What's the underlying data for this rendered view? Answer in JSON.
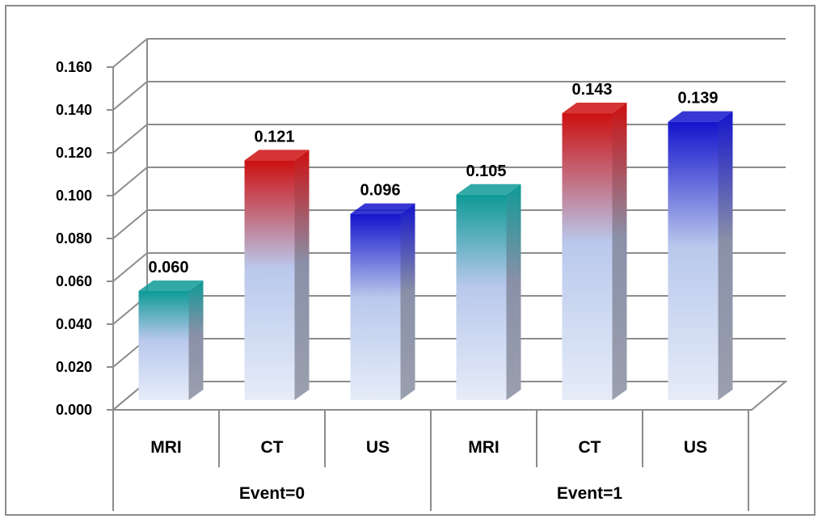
{
  "chart_data": {
    "type": "bar",
    "style": "3d-column",
    "groups": [
      "Event=0",
      "Event=1"
    ],
    "categories": [
      "MRI",
      "CT",
      "US"
    ],
    "values": [
      [
        0.06,
        0.121,
        0.096
      ],
      [
        0.105,
        0.143,
        0.139
      ]
    ],
    "data_labels": [
      "0.060",
      "0.121",
      "0.096",
      "0.105",
      "0.143",
      "0.139"
    ],
    "ylim": [
      0,
      0.16
    ],
    "yticks": [
      "0.000",
      "0.020",
      "0.040",
      "0.060",
      "0.080",
      "0.100",
      "0.120",
      "0.140",
      "0.160"
    ],
    "grid": true,
    "legend": "none",
    "title": "",
    "xlabel": "",
    "ylabel": ""
  },
  "colors": {
    "MRI": "#0e9a96",
    "CT": "#cc1010",
    "US": "#1414cc",
    "grid": "#8c8c8c",
    "frame": "#8c8c8c"
  }
}
